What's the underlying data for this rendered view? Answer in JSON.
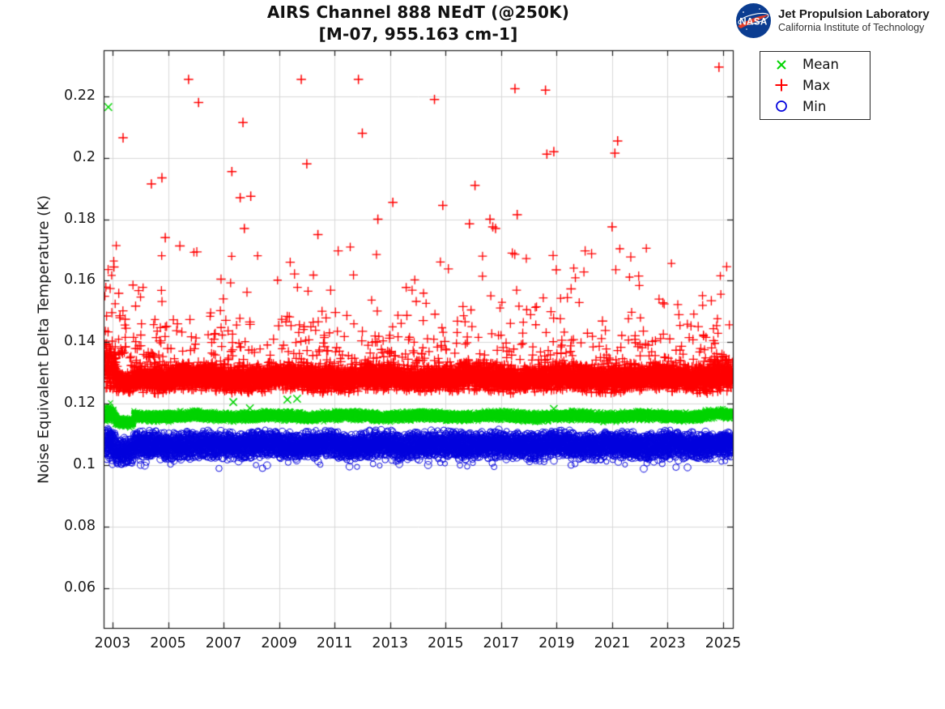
{
  "logo": {
    "nasa_text": "NASA",
    "org_line1": "Jet Propulsion Laboratory",
    "org_line2": "California Institute of Technology",
    "meatball_blue": "#0b3d91",
    "swoosh_red": "#e23d28"
  },
  "chart_data": {
    "type": "scatter",
    "title": "AIRS Channel 888 NEdT (@250K)",
    "subtitle": "[M-07, 955.163 cm-1]",
    "xlabel": "",
    "ylabel": "Noise Equivalent Delta Temperature (K)",
    "xlim": [
      2002.68,
      2025.35
    ],
    "ylim": [
      0.047,
      0.235
    ],
    "grid": true,
    "grid_color": "#d8d8d8",
    "axis_color": "#1c1c1c",
    "tick_label_color": "#1c1c1c",
    "x_ticks": [
      {
        "value": 2003,
        "label": "2003"
      },
      {
        "value": 2005,
        "label": "2005"
      },
      {
        "value": 2007,
        "label": "2007"
      },
      {
        "value": 2009,
        "label": "2009"
      },
      {
        "value": 2011,
        "label": "2011"
      },
      {
        "value": 2013,
        "label": "2013"
      },
      {
        "value": 2015,
        "label": "2015"
      },
      {
        "value": 2017,
        "label": "2017"
      },
      {
        "value": 2019,
        "label": "2019"
      },
      {
        "value": 2021,
        "label": "2021"
      },
      {
        "value": 2023,
        "label": "2023"
      },
      {
        "value": 2025,
        "label": "2025"
      }
    ],
    "y_ticks": [
      {
        "value": 0.22,
        "label": "0.22"
      },
      {
        "value": 0.2,
        "label": "0.2"
      },
      {
        "value": 0.18,
        "label": "0.18"
      },
      {
        "value": 0.16,
        "label": "0.16"
      },
      {
        "value": 0.14,
        "label": "0.14"
      },
      {
        "value": 0.12,
        "label": "0.12"
      },
      {
        "value": 0.1,
        "label": "0.1"
      },
      {
        "value": 0.08,
        "label": "0.08"
      },
      {
        "value": 0.06,
        "label": "0.06"
      }
    ],
    "legend": {
      "position": "outside-top-right",
      "items": [
        {
          "label": "Mean",
          "marker": "x",
          "color": "#00d400"
        },
        {
          "label": "Max",
          "marker": "plus",
          "color": "#ff0000"
        },
        {
          "label": "Min",
          "marker": "circle",
          "color": "#0000dd"
        }
      ]
    },
    "sampling": {
      "points_per_series": 8100,
      "x_start": 2002.72,
      "x_end": 2025.33,
      "seed": 20250888
    },
    "series": [
      {
        "name": "Mean",
        "marker": "x",
        "color": "#00d400",
        "marker_size": 2.9,
        "marker_size_jitter": 0.5,
        "line_width": 1.1,
        "band_segments": [
          {
            "x0": 2002.72,
            "x1": 2002.98,
            "center": 0.1158,
            "center_end": 0.1172,
            "sigma": 0.0013
          },
          {
            "x0": 2002.98,
            "x1": 2003.18,
            "center": 0.117,
            "center_end": 0.1137,
            "sigma": 0.001
          },
          {
            "x0": 2003.18,
            "x1": 2003.76,
            "center": 0.1136,
            "sigma": 0.0007
          },
          {
            "x0": 2003.76,
            "x1": 2024.3,
            "center": 0.1159,
            "sigma": 0.0007
          },
          {
            "x0": 2024.3,
            "x1": 2025.33,
            "center": 0.1163,
            "sigma": 0.0007
          }
        ],
        "wiggle": {
          "amp": 0.0003,
          "period": 2.7,
          "phase": 0.8
        },
        "outliers": [
          [
            2002.85,
            0.2165
          ],
          [
            2007.35,
            0.1205
          ],
          [
            2007.95,
            0.1185
          ],
          [
            2009.3,
            0.1213
          ],
          [
            2009.65,
            0.1216
          ],
          [
            2018.9,
            0.1183
          ]
        ],
        "outlier_marker_size": 4.6
      },
      {
        "name": "Max",
        "marker": "plus",
        "color": "#ff0000",
        "marker_size": 5.0,
        "marker_size_jitter": 1.0,
        "line_width": 1.3,
        "band_segments": [
          {
            "x0": 2002.72,
            "x1": 2003.18,
            "center": 0.1302,
            "sigma": 0.003
          },
          {
            "x0": 2003.18,
            "x1": 2003.76,
            "center": 0.127,
            "sigma": 0.0014
          },
          {
            "x0": 2003.76,
            "x1": 2024.3,
            "center": 0.1284,
            "sigma": 0.0019
          },
          {
            "x0": 2024.3,
            "x1": 2025.33,
            "center": 0.1291,
            "sigma": 0.0023
          }
        ],
        "wiggle": {
          "amp": 0.0005,
          "period": 3.3,
          "phase": 2.1
        },
        "tail": {
          "prob": 0.07,
          "prob_early": 0.105,
          "early_until": 2004.6,
          "prob_late": 0.1,
          "late_from": 2024.2,
          "offset": 0.004,
          "exp_mean": 0.0095,
          "cap": 0.172
        },
        "outliers": [
          [
            2003.05,
            0.1645
          ],
          [
            2003.38,
            0.2065
          ],
          [
            2004.4,
            0.1915
          ],
          [
            2004.78,
            0.1935
          ],
          [
            2004.9,
            0.174
          ],
          [
            2005.74,
            0.2255
          ],
          [
            2006.1,
            0.218
          ],
          [
            2007.3,
            0.1955
          ],
          [
            2007.6,
            0.187
          ],
          [
            2007.7,
            0.2115
          ],
          [
            2007.75,
            0.177
          ],
          [
            2007.98,
            0.1875
          ],
          [
            2009.8,
            0.2255
          ],
          [
            2010.0,
            0.198
          ],
          [
            2010.4,
            0.175
          ],
          [
            2011.86,
            0.2255
          ],
          [
            2012.0,
            0.208
          ],
          [
            2012.56,
            0.18
          ],
          [
            2013.1,
            0.1855
          ],
          [
            2014.6,
            0.219
          ],
          [
            2014.9,
            0.1845
          ],
          [
            2015.86,
            0.1785
          ],
          [
            2016.06,
            0.191
          ],
          [
            2016.6,
            0.18
          ],
          [
            2016.7,
            0.1775
          ],
          [
            2016.8,
            0.177
          ],
          [
            2017.5,
            0.2225
          ],
          [
            2017.58,
            0.1815
          ],
          [
            2018.6,
            0.222
          ],
          [
            2018.65,
            0.2012
          ],
          [
            2018.9,
            0.202
          ],
          [
            2021.0,
            0.1775
          ],
          [
            2021.1,
            0.2015
          ],
          [
            2021.2,
            0.2055
          ],
          [
            2024.85,
            0.2295
          ]
        ],
        "outlier_marker_size": 5.8
      },
      {
        "name": "Min",
        "marker": "circle",
        "color": "#0000dd",
        "marker_size": 3.0,
        "marker_size_jitter": 1.5,
        "line_width": 1.0,
        "band_segments": [
          {
            "x0": 2002.72,
            "x1": 2003.1,
            "center": 0.1072,
            "sigma": 0.0026
          },
          {
            "x0": 2003.1,
            "x1": 2003.76,
            "center": 0.1049,
            "sigma": 0.0018
          },
          {
            "x0": 2003.76,
            "x1": 2024.3,
            "center": 0.1066,
            "sigma": 0.00185
          },
          {
            "x0": 2024.3,
            "x1": 2025.33,
            "center": 0.1069,
            "sigma": 0.0019
          }
        ],
        "wiggle": {
          "amp": 0.0004,
          "period": 2.1,
          "phase": 4.0
        },
        "dropouts": {
          "prob": 0.032,
          "prob_early": 0.05,
          "early_until": 2005.5,
          "offset": -0.003,
          "exp_mean": 0.0013,
          "floor": 0.0988
        },
        "outliers": [],
        "outlier_marker_size": 4.5
      }
    ]
  }
}
